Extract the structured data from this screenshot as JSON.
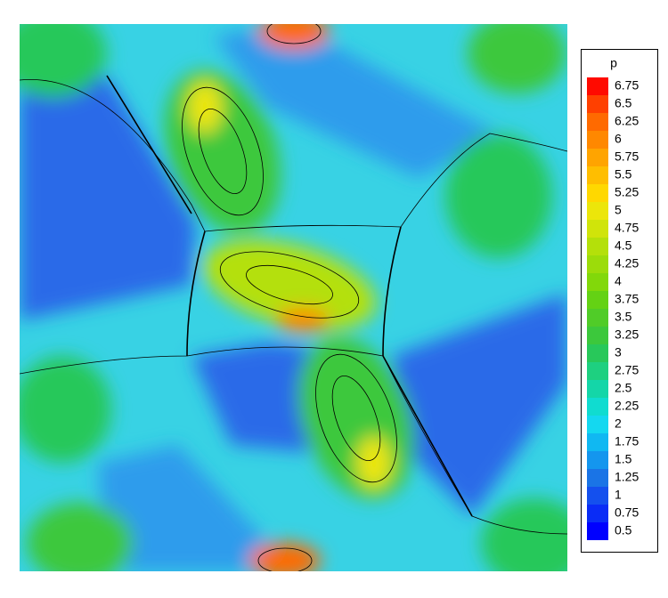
{
  "chart_data": {
    "type": "contour",
    "legend_title": "p",
    "levels": [
      0.5,
      0.75,
      1,
      1.25,
      1.5,
      1.75,
      2,
      2.25,
      2.5,
      2.75,
      3,
      3.25,
      3.5,
      3.75,
      4,
      4.25,
      4.5,
      4.75,
      5,
      5.25,
      5.5,
      5.75,
      6,
      6.25,
      6.5,
      6.75
    ],
    "colors": [
      "#0000ff",
      "#0a2cf6",
      "#1450ee",
      "#1a74e6",
      "#1496ee",
      "#10b8f2",
      "#14d8f0",
      "#10dcd0",
      "#14d6a8",
      "#1ed080",
      "#28c85a",
      "#3cc83c",
      "#50cc28",
      "#64d214",
      "#82d80a",
      "#9cdc0a",
      "#b4e00a",
      "#d0e40a",
      "#ece60a",
      "#ffd800",
      "#ffbe00",
      "#ffa400",
      "#ff8800",
      "#ff6a00",
      "#ff4000",
      "#ff0a00"
    ]
  }
}
